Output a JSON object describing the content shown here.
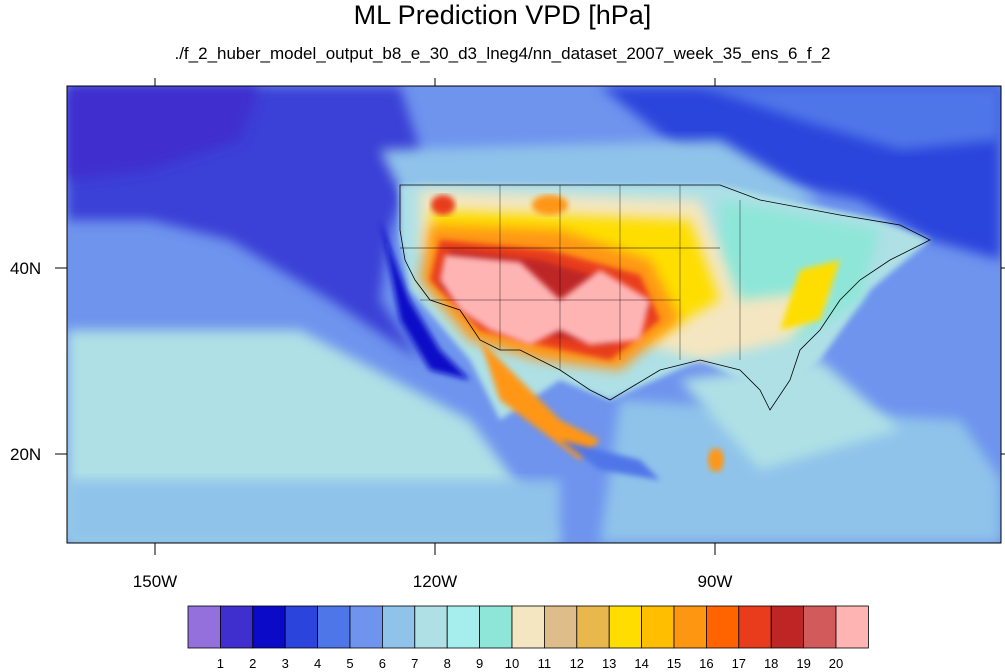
{
  "title": "ML Prediction VPD [hPa]",
  "subtitle": "./f_2_huber_model_output_b8_e_30_d3_lneg4/nn_dataset_2007_week_35_ens_6_f_2",
  "y_axis": {
    "labels": [
      "40N",
      "20N"
    ]
  },
  "x_axis": {
    "labels": [
      "150W",
      "120W",
      "90W"
    ]
  },
  "colorbar": {
    "labels": [
      "1",
      "2",
      "3",
      "4",
      "5",
      "6",
      "7",
      "8",
      "9",
      "10",
      "11",
      "12",
      "13",
      "14",
      "15",
      "16",
      "17",
      "18",
      "19",
      "20"
    ],
    "colors": [
      "#9370db",
      "#3f2fcf",
      "#0a0ac8",
      "#2a44dc",
      "#4f76e8",
      "#6e94ee",
      "#8fc3ea",
      "#aee0e6",
      "#a6eeee",
      "#8ee6d8",
      "#f4e6c0",
      "#dfbd8a",
      "#e8b84c",
      "#fede00",
      "#ffbe00",
      "#ff9612",
      "#ff6400",
      "#e83c1c",
      "#be2626",
      "#d25a5a",
      "#ffb4b4"
    ]
  },
  "map_colors": {
    "ocean_deep": "#3a3fd6",
    "ocean_mid": "#4f76e8",
    "ocean_light": "#6e94ee",
    "pale_blue": "#8fc3ea",
    "cyan": "#aee0e6",
    "teal": "#8ee6d8",
    "land_east": "#8fc3ea",
    "tan": "#f4e6c0",
    "yellow": "#fede00",
    "orange": "#ff9612",
    "red": "#e83c1c",
    "darkred": "#be2626",
    "pink": "#ffb4b4"
  }
}
